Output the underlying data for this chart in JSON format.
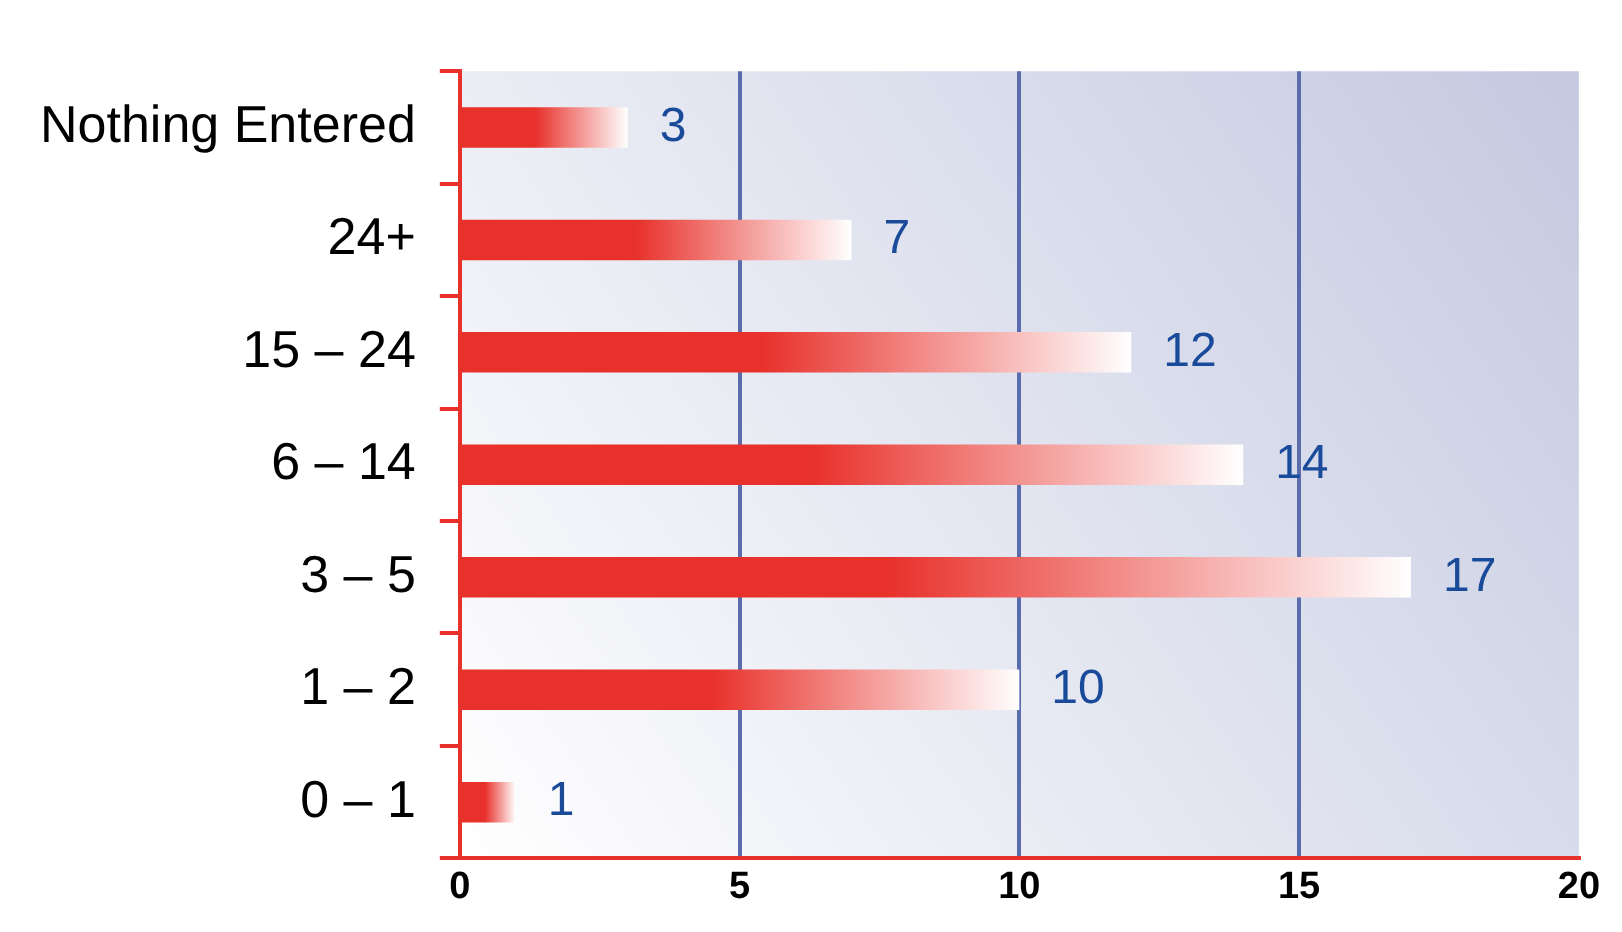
{
  "chart_data": {
    "type": "bar",
    "orientation": "horizontal",
    "categories": [
      "Nothing Entered",
      "24+",
      "15 – 24",
      "6 – 14",
      "3 – 5",
      "1 – 2",
      "0 – 1"
    ],
    "values": [
      3,
      7,
      12,
      14,
      17,
      10,
      1
    ],
    "color": "#e8312b",
    "xlim": [
      0,
      20
    ],
    "xticks": [
      0,
      5,
      10,
      15,
      20
    ],
    "grid": "x",
    "data_labels": true,
    "legend": false
  }
}
